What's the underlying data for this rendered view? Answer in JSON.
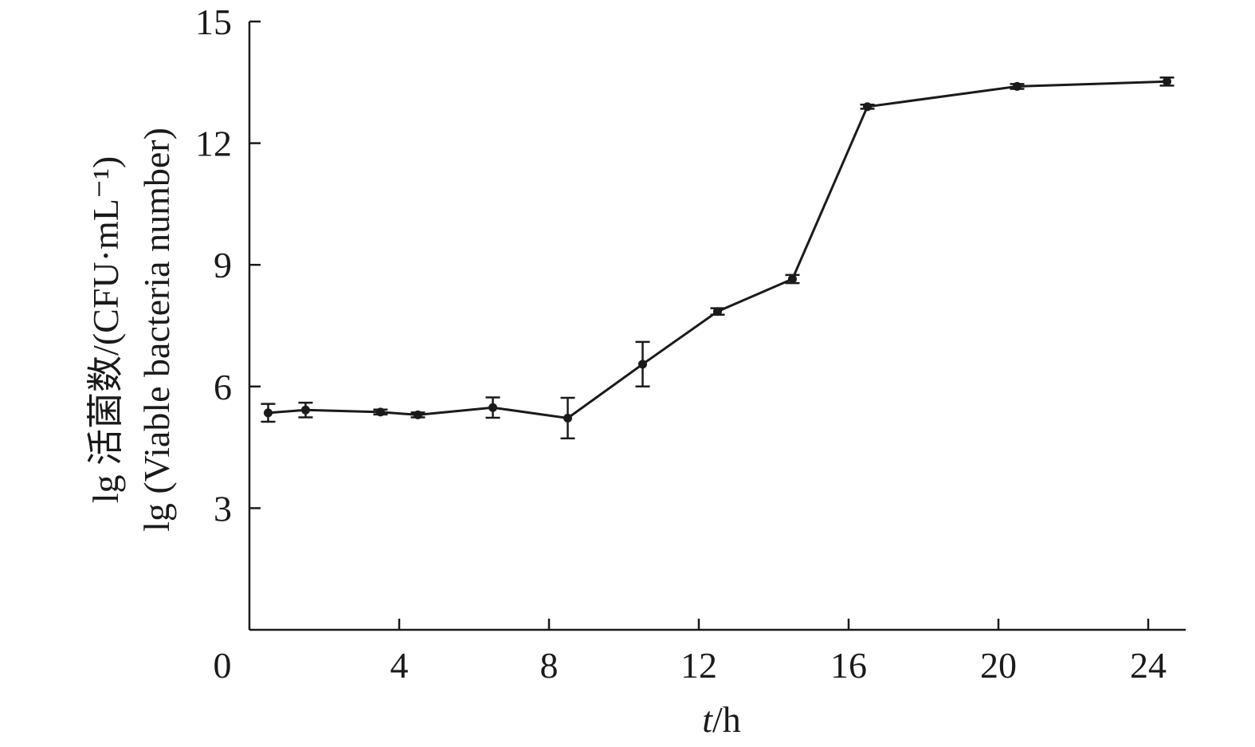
{
  "chart_data": {
    "type": "line",
    "xlabel": "t/h",
    "xlabel_parts": {
      "var": "t",
      "unit": "/h"
    },
    "ylabel_line1": "lg 活菌数/(CFU·mL⁻¹)",
    "ylabel_line2": "lg (Viable bacteria number)",
    "xlim": [
      0,
      25
    ],
    "ylim": [
      0,
      15
    ],
    "x_ticks": [
      0,
      4,
      8,
      12,
      16,
      20,
      24
    ],
    "y_ticks": [
      3,
      6,
      9,
      12,
      15
    ],
    "grid": false,
    "series": [
      {
        "color": "#1a1a1a",
        "points": [
          {
            "x": 0.5,
            "y": 5.35,
            "err": 0.22
          },
          {
            "x": 1.5,
            "y": 5.42,
            "err": 0.18
          },
          {
            "x": 3.5,
            "y": 5.37,
            "err": 0.06
          },
          {
            "x": 4.5,
            "y": 5.3,
            "err": 0.06
          },
          {
            "x": 6.5,
            "y": 5.48,
            "err": 0.25
          },
          {
            "x": 8.5,
            "y": 5.22,
            "err": 0.5
          },
          {
            "x": 10.5,
            "y": 6.55,
            "err": 0.55
          },
          {
            "x": 12.5,
            "y": 7.85,
            "err": 0.08
          },
          {
            "x": 14.5,
            "y": 8.65,
            "err": 0.1
          },
          {
            "x": 16.5,
            "y": 12.9,
            "err": 0.05
          },
          {
            "x": 20.5,
            "y": 13.4,
            "err": 0.06
          },
          {
            "x": 24.5,
            "y": 13.52,
            "err": 0.1
          }
        ]
      }
    ]
  }
}
